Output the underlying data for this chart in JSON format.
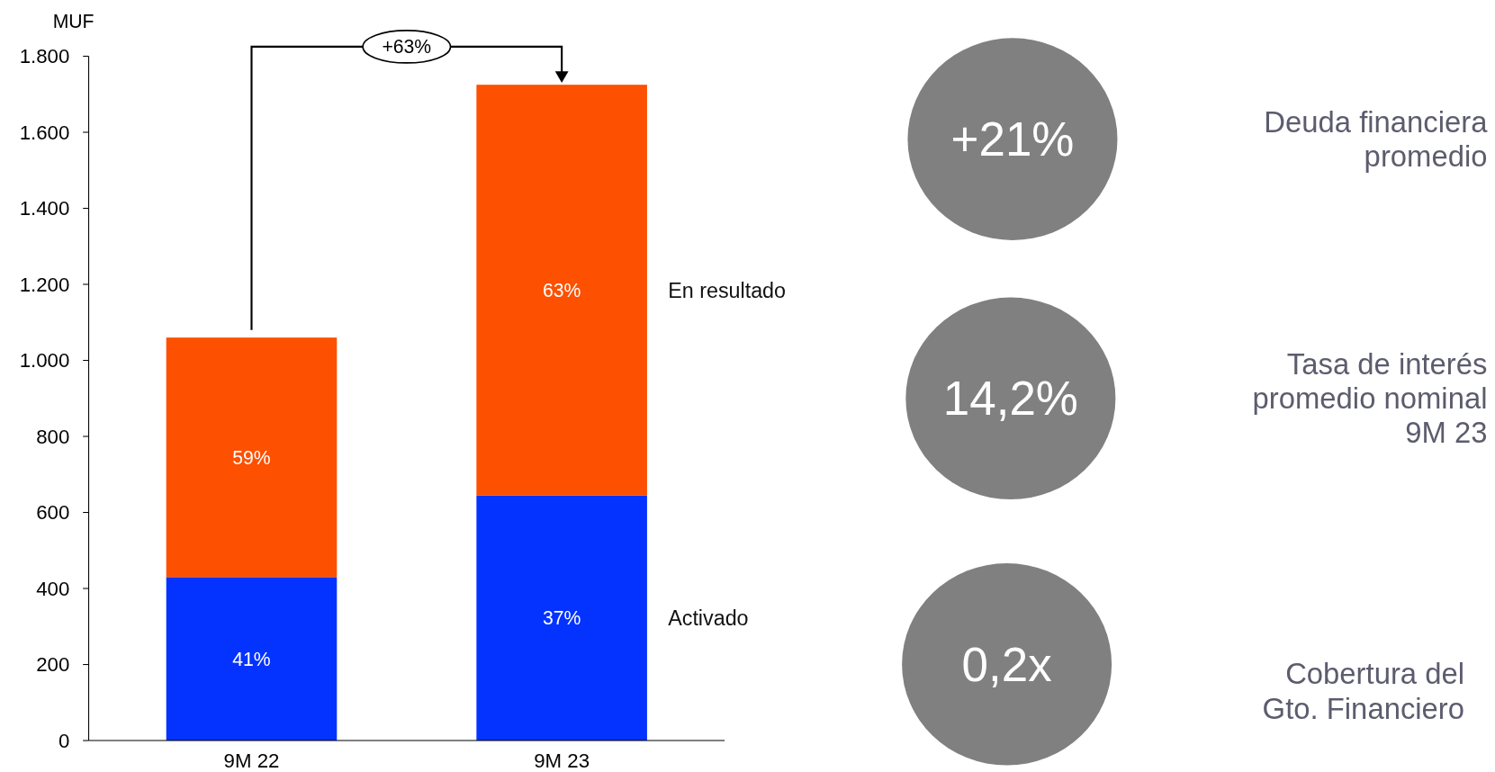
{
  "chart_data": [
    {
      "type": "bar",
      "stacked": true,
      "ylabel": "MUF",
      "categories": [
        "9M 22",
        "9M 23"
      ],
      "series": [
        {
          "name": "Activado",
          "color": "#0433ff",
          "values": [
            430,
            645
          ]
        },
        {
          "name": "En resultado",
          "color": "#fd5000",
          "values": [
            630,
            1080
          ]
        }
      ],
      "ylim": [
        0,
        1800
      ],
      "yticks": [
        0,
        200,
        400,
        600,
        800,
        {
          "value": 1000,
          "label": "1.000"
        },
        {
          "value": 1200,
          "label": "1.200"
        },
        {
          "value": 1400,
          "label": "1.400"
        },
        {
          "value": 1600,
          "label": "1.600"
        },
        {
          "value": 1800,
          "label": "1.800"
        }
      ],
      "annotations": [
        "+63%",
        "41%",
        "37%",
        "59%",
        "63%"
      ]
    },
    {
      "type": "other",
      "annotations": [
        "+21%",
        "Deuda financiera\npromedio",
        "14,2%",
        "Tasa de interés\npromedio nominal\n9M 23",
        "0,2x",
        "Cobertura del\nGto. Financiero"
      ]
    }
  ]
}
